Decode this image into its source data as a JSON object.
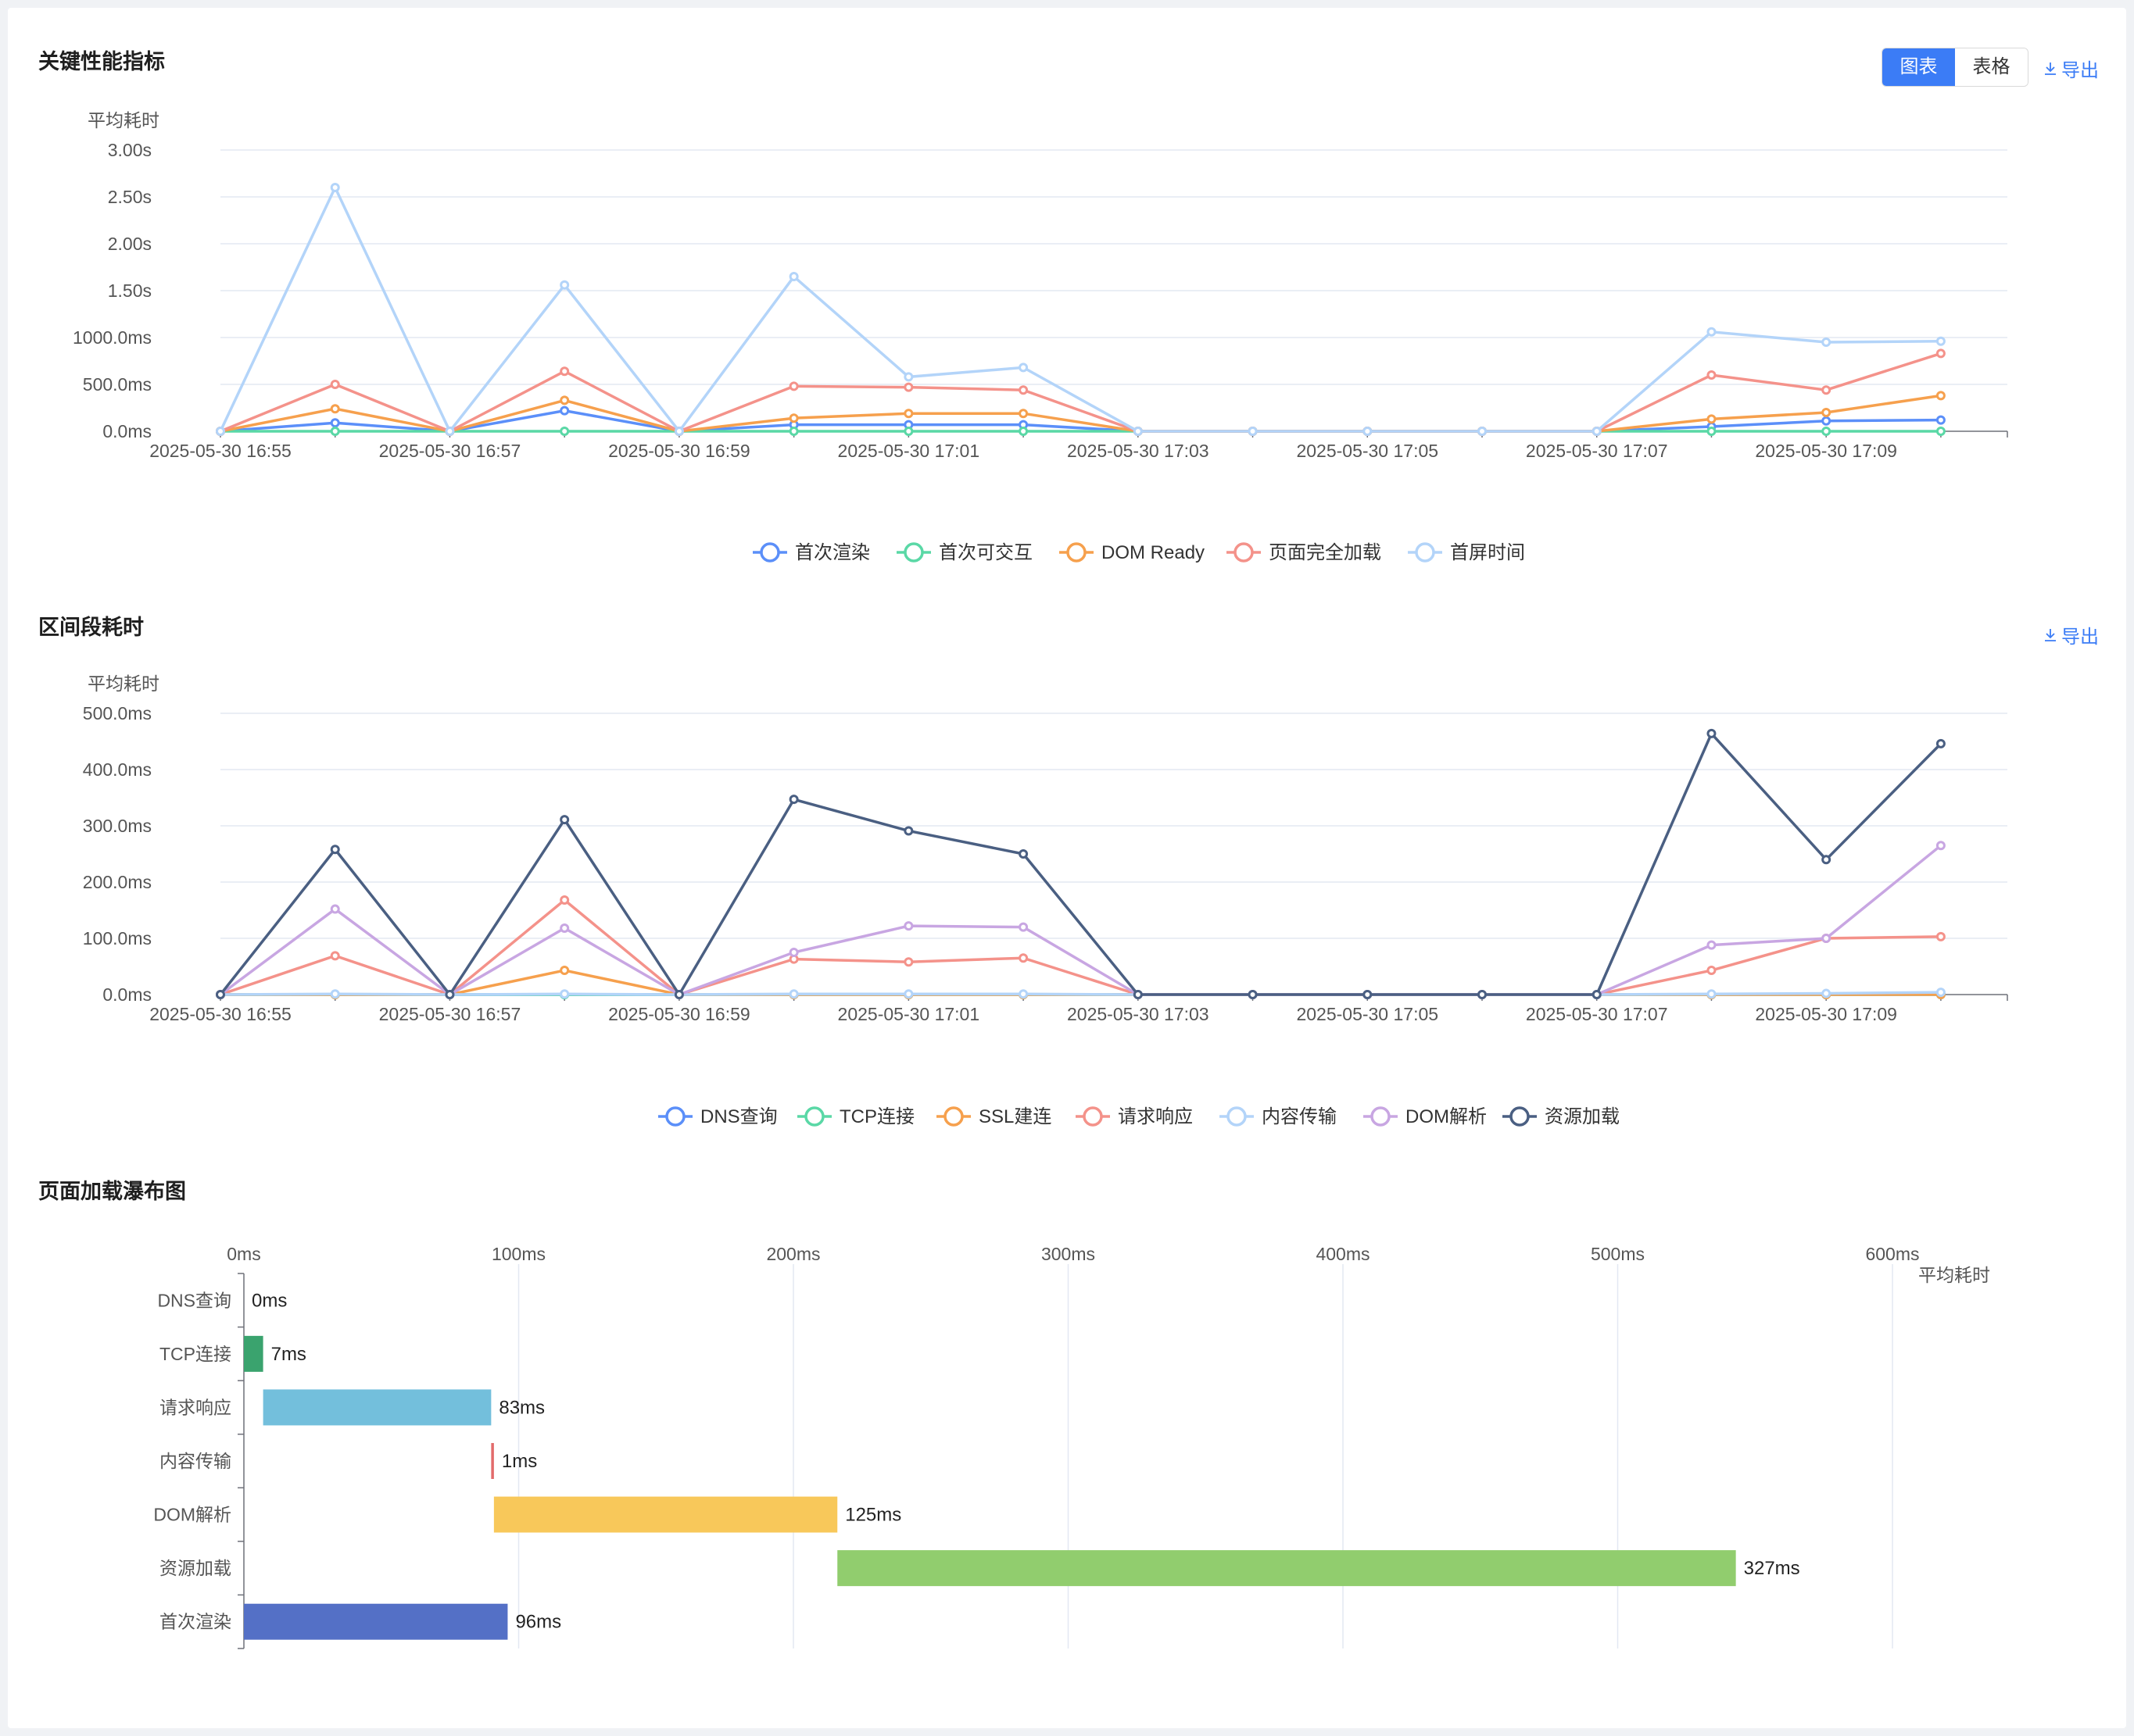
{
  "panels": {
    "kpi": {
      "title": "关键性能指标",
      "toggle": {
        "chart_label": "图表",
        "table_label": "表格",
        "selected": "图表"
      },
      "export_label": "导出"
    },
    "interval": {
      "title": "区间段耗时",
      "export_label": "导出"
    },
    "waterfall": {
      "title": "页面加载瀑布图"
    }
  },
  "chart_data": [
    {
      "id": "kpi",
      "type": "line",
      "ylabel": "平均耗时",
      "yticks": [
        "0.0ms",
        "500.0ms",
        "1000.0ms",
        "1.50s",
        "2.00s",
        "2.50s",
        "3.00s"
      ],
      "ylim": [
        0,
        3000
      ],
      "x": [
        "16:55",
        "16:56",
        "16:57",
        "16:58",
        "16:59",
        "17:00",
        "17:01",
        "17:02",
        "17:03",
        "17:04",
        "17:05",
        "17:06",
        "17:07",
        "17:08",
        "17:09",
        "17:10"
      ],
      "xtick_labels": [
        "2025-05-30 16:55",
        "2025-05-30 16:57",
        "2025-05-30 16:59",
        "2025-05-30 17:01",
        "2025-05-30 17:03",
        "2025-05-30 17:05",
        "2025-05-30 17:07",
        "2025-05-30 17:09"
      ],
      "legend_position": "bottom-center",
      "grid": true,
      "series": [
        {
          "name": "首次渲染",
          "color": "#5b8ff9",
          "values": [
            0,
            90,
            0,
            220,
            0,
            70,
            70,
            70,
            0,
            0,
            0,
            0,
            0,
            50,
            110,
            120
          ]
        },
        {
          "name": "首次可交互",
          "color": "#5ad8a6",
          "values": [
            0,
            0,
            0,
            0,
            0,
            0,
            0,
            0,
            0,
            0,
            0,
            0,
            0,
            0,
            0,
            0
          ]
        },
        {
          "name": "DOM Ready",
          "color": "#f6a04d",
          "values": [
            0,
            240,
            0,
            330,
            0,
            140,
            190,
            190,
            0,
            0,
            0,
            0,
            0,
            130,
            200,
            380
          ]
        },
        {
          "name": "页面完全加载",
          "color": "#f4928a",
          "values": [
            0,
            500,
            0,
            640,
            0,
            480,
            470,
            440,
            0,
            0,
            0,
            0,
            0,
            600,
            440,
            830
          ]
        },
        {
          "name": "首屏时间",
          "color": "#b3d4f9",
          "values": [
            0,
            2600,
            0,
            1560,
            0,
            1650,
            580,
            680,
            0,
            0,
            0,
            0,
            0,
            1060,
            950,
            960
          ]
        }
      ]
    },
    {
      "id": "interval",
      "type": "line",
      "ylabel": "平均耗时",
      "yticks": [
        "0.0ms",
        "100.0ms",
        "200.0ms",
        "300.0ms",
        "400.0ms",
        "500.0ms"
      ],
      "ylim": [
        0,
        500
      ],
      "x": [
        "16:55",
        "16:56",
        "16:57",
        "16:58",
        "16:59",
        "17:00",
        "17:01",
        "17:02",
        "17:03",
        "17:04",
        "17:05",
        "17:06",
        "17:07",
        "17:08",
        "17:09",
        "17:10"
      ],
      "xtick_labels": [
        "2025-05-30 16:55",
        "2025-05-30 16:57",
        "2025-05-30 16:59",
        "2025-05-30 17:01",
        "2025-05-30 17:03",
        "2025-05-30 17:05",
        "2025-05-30 17:07",
        "2025-05-30 17:09"
      ],
      "legend_position": "bottom-center",
      "grid": true,
      "series": [
        {
          "name": "DNS查询",
          "color": "#5b8ff9",
          "values": [
            0,
            0,
            0,
            0,
            0,
            0,
            0,
            0,
            0,
            0,
            0,
            0,
            0,
            0,
            0,
            0
          ]
        },
        {
          "name": "TCP连接",
          "color": "#5ad8a6",
          "values": [
            0,
            0,
            0,
            0,
            0,
            0,
            0,
            0,
            0,
            0,
            0,
            0,
            0,
            0,
            0,
            0
          ]
        },
        {
          "name": "SSL建连",
          "color": "#f6a04d",
          "values": [
            0,
            0,
            0,
            43,
            0,
            0,
            0,
            0,
            0,
            0,
            0,
            0,
            0,
            0,
            0,
            0
          ]
        },
        {
          "name": "请求响应",
          "color": "#f4928a",
          "values": [
            0,
            69,
            0,
            168,
            0,
            63,
            58,
            65,
            0,
            0,
            0,
            0,
            0,
            43,
            100,
            103
          ]
        },
        {
          "name": "内容传输",
          "color": "#b3d4f9",
          "values": [
            0,
            1,
            0,
            1,
            0,
            1,
            1,
            1,
            0,
            0,
            0,
            0,
            0,
            1,
            2,
            4
          ]
        },
        {
          "name": "DOM解析",
          "color": "#c8a6e2",
          "values": [
            0,
            152,
            0,
            118,
            0,
            75,
            122,
            120,
            0,
            0,
            0,
            0,
            0,
            88,
            100,
            265
          ]
        },
        {
          "name": "资源加载",
          "color": "#4a5f82",
          "values": [
            0,
            258,
            0,
            311,
            0,
            347,
            291,
            250,
            0,
            0,
            0,
            0,
            0,
            464,
            240,
            446
          ]
        }
      ]
    },
    {
      "id": "waterfall",
      "type": "bar",
      "orientation": "horizontal",
      "xlabel": "平均耗时",
      "xticks": [
        "0ms",
        "100ms",
        "200ms",
        "300ms",
        "400ms",
        "500ms",
        "600ms"
      ],
      "xlim": [
        0,
        620
      ],
      "categories": [
        "DNS查询",
        "TCP连接",
        "请求响应",
        "内容传输",
        "DOM解析",
        "资源加载",
        "首次渲染"
      ],
      "starts": [
        0,
        0,
        7,
        90,
        91,
        216,
        0
      ],
      "values": [
        0,
        7,
        83,
        1,
        125,
        327,
        96
      ],
      "value_labels": [
        "0ms",
        "7ms",
        "83ms",
        "1ms",
        "125ms",
        "327ms",
        "96ms"
      ],
      "colors": [
        "#5b8ff9",
        "#3aa36e",
        "#73bfdc",
        "#e26b6b",
        "#f8c85a",
        "#91cd6e",
        "#5470c6"
      ],
      "grid": true
    }
  ],
  "icons": {
    "export": "download-icon"
  }
}
